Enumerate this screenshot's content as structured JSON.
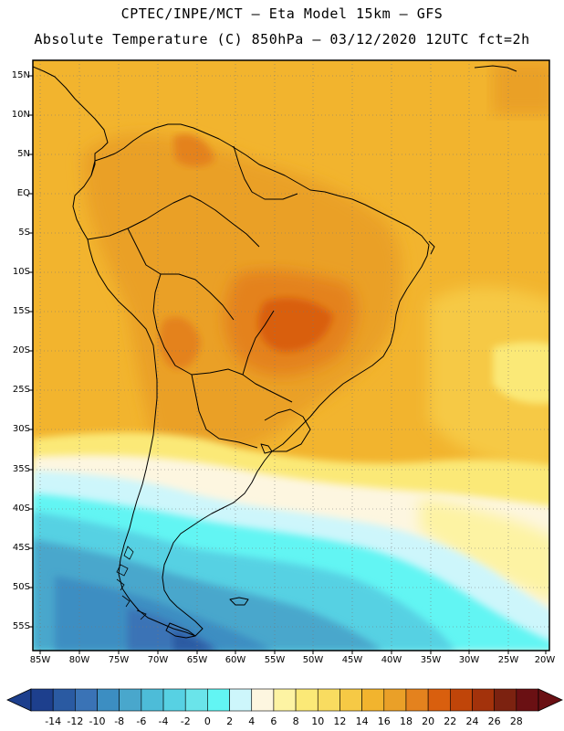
{
  "header": {
    "line1": "CPTEC/INPE/MCT –  Eta Model 15km – GFS",
    "line2": "Absolute Temperature (C) 850hPa – 03/12/2020 12UTC fct=2h"
  },
  "axes": {
    "lat_labels": [
      "15N",
      "10N",
      "5N",
      "EQ",
      "5S",
      "10S",
      "15S",
      "20S",
      "25S",
      "30S",
      "35S",
      "40S",
      "45S",
      "50S",
      "55S"
    ],
    "lon_labels": [
      "85W",
      "80W",
      "75W",
      "70W",
      "65W",
      "60W",
      "55W",
      "50W",
      "45W",
      "40W",
      "35W",
      "30W",
      "25W",
      "20W"
    ]
  },
  "colorbar": {
    "tick_labels": [
      "-14",
      "-12",
      "-10",
      "-8",
      "-6",
      "-4",
      "-2",
      "0",
      "2",
      "4",
      "6",
      "8",
      "10",
      "12",
      "14",
      "16",
      "18",
      "20",
      "22",
      "24",
      "26",
      "28"
    ],
    "colors": [
      "#1d3f8d",
      "#2a5aa2",
      "#3a73b6",
      "#3c8ec2",
      "#49a7cc",
      "#4dbcd8",
      "#57d1e3",
      "#6ae4ea",
      "#62f5f3",
      "#cdf6fb",
      "#fdf6e0",
      "#fdf3a3",
      "#fbe977",
      "#f9dc60",
      "#f6c945",
      "#f2b42e",
      "#eaa028",
      "#e4821e",
      "#d95f0e",
      "#c04509",
      "#a3320b",
      "#7c2210",
      "#6a1013"
    ]
  },
  "map": {
    "region": "South America",
    "variable": "Absolute Temperature (C) 850hPa"
  }
}
